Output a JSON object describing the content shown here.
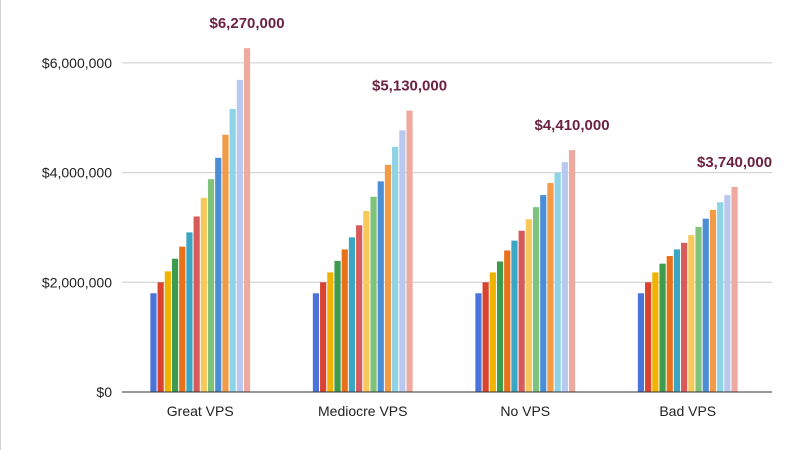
{
  "chart_data": {
    "type": "bar",
    "categories": [
      "Great VPS",
      "Mediocre VPS",
      "No VPS",
      "Bad VPS"
    ],
    "series": [
      {
        "values": [
          1800000,
          1800000,
          1800000,
          1800000
        ]
      },
      {
        "values": [
          2000000,
          2000000,
          2000000,
          2000000
        ]
      },
      {
        "values": [
          2200000,
          2180000,
          2180000,
          2180000
        ]
      },
      {
        "values": [
          2430000,
          2390000,
          2380000,
          2340000
        ]
      },
      {
        "values": [
          2650000,
          2600000,
          2580000,
          2480000
        ]
      },
      {
        "values": [
          2910000,
          2820000,
          2760000,
          2600000
        ]
      },
      {
        "values": [
          3200000,
          3040000,
          2940000,
          2720000
        ]
      },
      {
        "values": [
          3540000,
          3300000,
          3150000,
          2860000
        ]
      },
      {
        "values": [
          3880000,
          3560000,
          3370000,
          3010000
        ]
      },
      {
        "values": [
          4270000,
          3840000,
          3590000,
          3160000
        ]
      },
      {
        "values": [
          4690000,
          4140000,
          3810000,
          3320000
        ]
      },
      {
        "values": [
          5160000,
          4470000,
          4000000,
          3460000
        ]
      },
      {
        "values": [
          5690000,
          4770000,
          4190000,
          3590000
        ]
      },
      {
        "values": [
          6270000,
          5130000,
          4410000,
          3740000
        ]
      }
    ],
    "colors": [
      "#4a74d9",
      "#d9432f",
      "#f0b400",
      "#3e9a4d",
      "#e8711a",
      "#3aa6c4",
      "#d75b5b",
      "#f7c95a",
      "#7fc27a",
      "#4a8fd6",
      "#f29a45",
      "#8fd3e6",
      "#b9c8ef",
      "#efaaa0"
    ],
    "data_labels": [
      "$6,270,000",
      "$5,130,000",
      "$4,410,000",
      "$3,740,000"
    ],
    "data_label_color": "#6b2240",
    "y_ticks": [
      {
        "value": 0,
        "label": "$0"
      },
      {
        "value": 2000000,
        "label": "$2,000,000"
      },
      {
        "value": 4000000,
        "label": "$4,000,000"
      },
      {
        "value": 6000000,
        "label": "$6,000,000"
      }
    ],
    "ylim": [
      0,
      6600000
    ],
    "grid": true,
    "legend": "none"
  }
}
